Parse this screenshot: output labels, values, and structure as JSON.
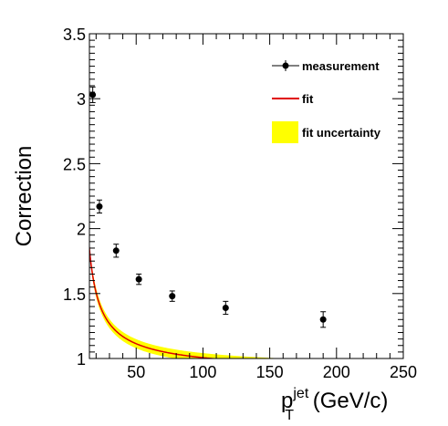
{
  "chart_data": {
    "type": "line",
    "title": "",
    "xlabel": {
      "base": "p",
      "superscript": "jet",
      "subscript": "T",
      "unit": " (GeV/c)"
    },
    "ylabel": "Correction",
    "xlim": [
      15,
      250
    ],
    "ylim": [
      1,
      3.5
    ],
    "grid": false,
    "legend_position": "top-right",
    "x_ticks": [
      50,
      100,
      150,
      200,
      250
    ],
    "x_tick_labels": [
      "50",
      "100",
      "150",
      "200",
      "250"
    ],
    "y_ticks": [
      1,
      1.5,
      2,
      2.5,
      3,
      3.5
    ],
    "y_tick_labels": [
      "1",
      "1.5",
      "2",
      "2.5",
      "3",
      "3.5"
    ],
    "series": [
      {
        "name": "measurement",
        "kind": "points",
        "color": "#000000",
        "x": [
          17.5,
          22.5,
          35,
          52,
          77,
          117,
          190
        ],
        "y": [
          3.03,
          2.17,
          1.83,
          1.61,
          1.48,
          1.39,
          1.3
        ],
        "err": [
          0.06,
          0.05,
          0.05,
          0.04,
          0.04,
          0.05,
          0.06
        ]
      },
      {
        "name": "fit",
        "kind": "line",
        "color": "#e00000",
        "model": {
          "a": 0.9,
          "b": 0.36,
          "c": 1.0,
          "x0": 8
        }
      },
      {
        "name": "fit uncertainty",
        "kind": "band",
        "color": "#ffff00",
        "halfwidth": 0.035
      }
    ],
    "legend": [
      {
        "label": "measurement",
        "kind": "marker"
      },
      {
        "label": "fit",
        "kind": "line"
      },
      {
        "label": "fit uncertainty",
        "kind": "band"
      }
    ]
  }
}
